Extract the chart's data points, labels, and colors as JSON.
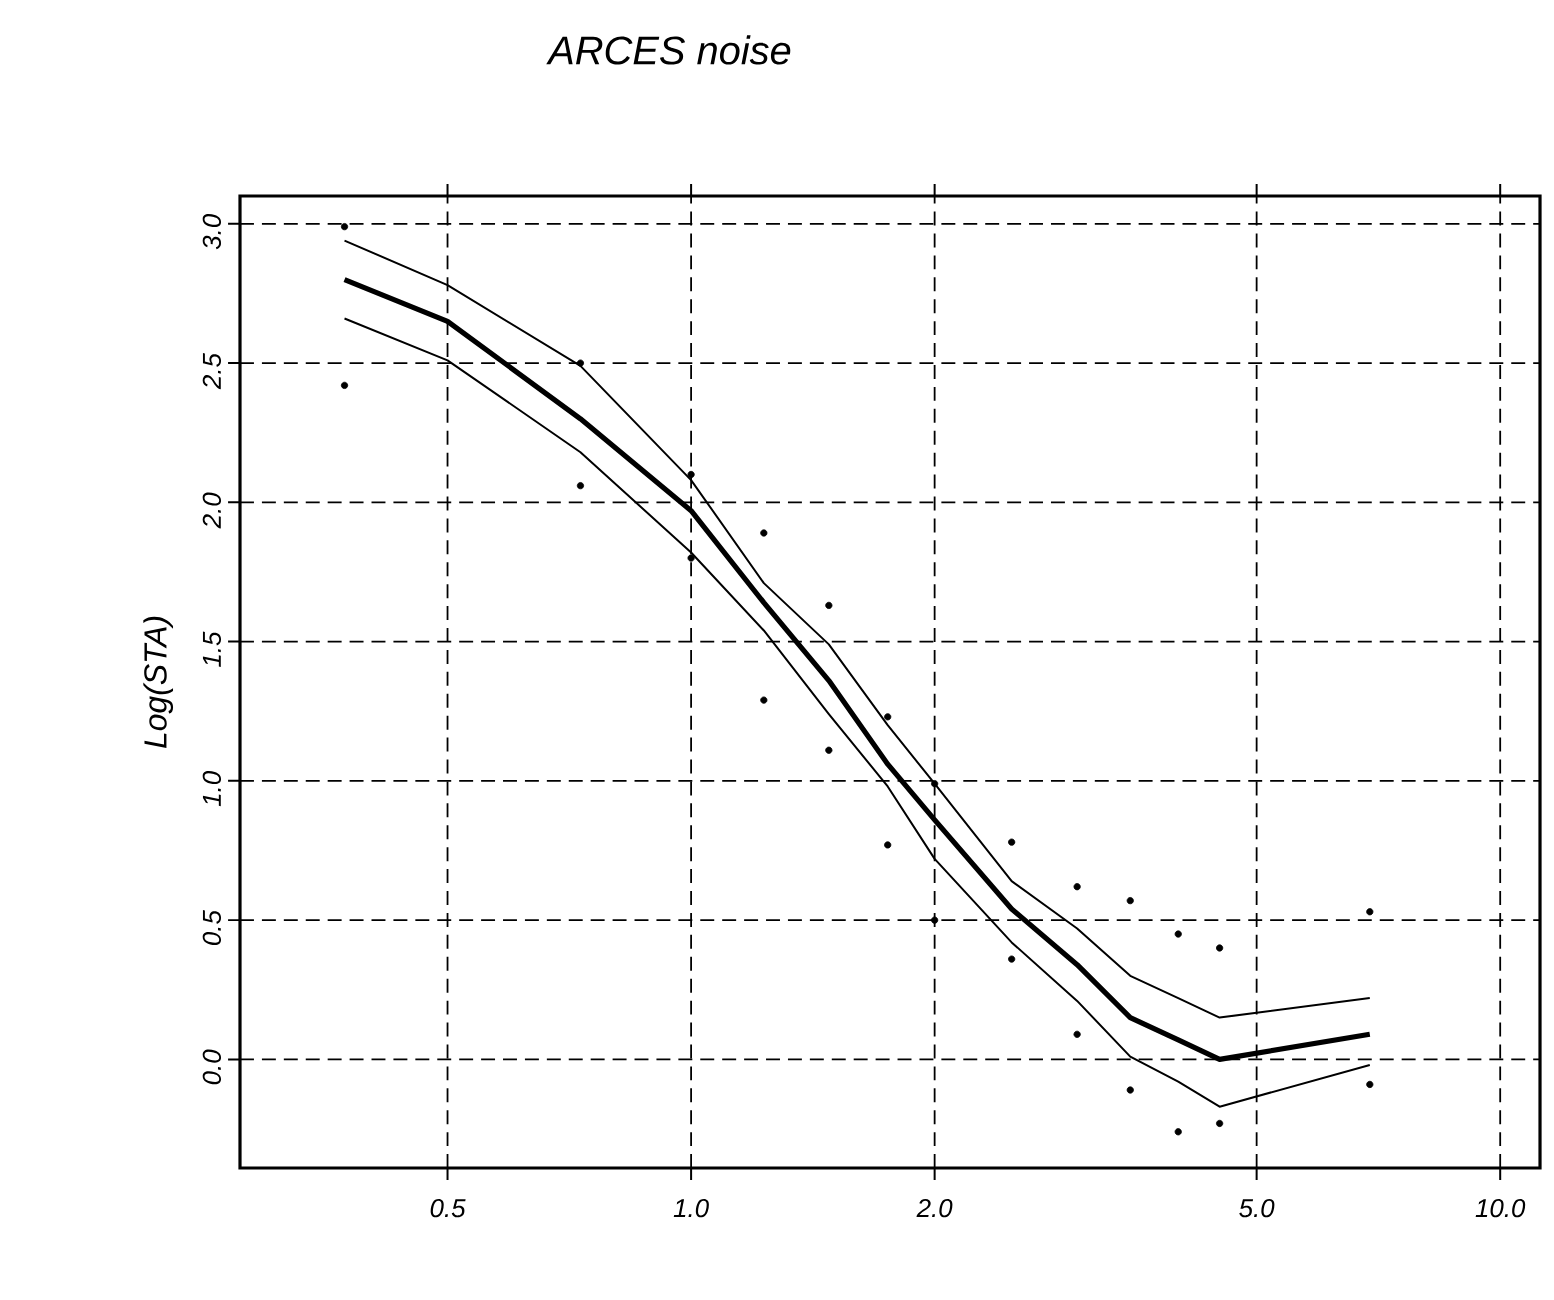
{
  "chart_data": {
    "type": "line",
    "title": "ARCES noise",
    "ylabel": "Log(STA)",
    "log": "x",
    "grid": true,
    "xlim": [
      0.277,
      11.2
    ],
    "ylim": [
      -0.39,
      3.1
    ],
    "xticks": [
      0.5,
      {
        "value": 1,
        "label": "1.0"
      },
      {
        "value": 2,
        "label": "2.0"
      },
      {
        "value": 5,
        "label": "5.0"
      },
      {
        "value": 10,
        "label": "10.0"
      }
    ],
    "yticks": [
      {
        "value": 0,
        "label": "0.0"
      },
      0.5,
      {
        "value": 1,
        "label": "1.0"
      },
      1.5,
      {
        "value": 2,
        "label": "2.0"
      },
      2.5,
      {
        "value": 3,
        "label": "3.0"
      }
    ],
    "series": [
      {
        "color": "#000000",
        "x": [
          0.373,
          0.5,
          0.73,
          1.0,
          1.23,
          1.48,
          1.75,
          2.0,
          2.49,
          3.0,
          3.49,
          4.0,
          4.5,
          6.9
        ],
        "values": [
          2.94,
          2.78,
          2.49,
          2.08,
          1.71,
          1.49,
          1.2,
          0.99,
          0.64,
          0.47,
          0.3,
          0.22,
          0.15,
          0.22
        ]
      },
      {
        "color": "#000000",
        "x": [
          0.373,
          0.5,
          0.73,
          1.0,
          1.23,
          1.48,
          1.75,
          2.0,
          2.49,
          3.0,
          3.49,
          4.0,
          4.5,
          6.9
        ],
        "values": [
          2.8,
          2.65,
          2.3,
          1.97,
          1.64,
          1.36,
          1.06,
          0.86,
          0.54,
          0.34,
          0.15,
          0.07,
          0.0,
          0.09
        ]
      },
      {
        "color": "#000000",
        "x": [
          0.373,
          0.5,
          0.73,
          1.0,
          1.23,
          1.48,
          1.75,
          2.0,
          2.49,
          3.0,
          3.49,
          4.0,
          4.5,
          6.9
        ],
        "values": [
          2.66,
          2.51,
          2.18,
          1.82,
          1.54,
          1.24,
          0.98,
          0.72,
          0.42,
          0.21,
          0.01,
          -0.08,
          -0.17,
          -0.02
        ]
      },
      {
        "type": "scatter",
        "marker": "circle",
        "color": "#000000",
        "x": [
          0.373,
          0.373,
          0.73,
          0.73,
          1.0,
          1.0,
          1.23,
          1.23,
          1.48,
          1.48,
          1.75,
          1.75,
          2.0,
          2.0,
          2.49,
          2.49,
          3.0,
          3.0,
          3.49,
          3.49,
          4.0,
          4.0,
          4.5,
          4.5,
          6.9,
          6.9
        ],
        "values": [
          2.99,
          2.42,
          2.5,
          2.06,
          2.1,
          1.8,
          1.89,
          1.29,
          1.63,
          1.11,
          1.23,
          0.77,
          0.99,
          0.5,
          0.78,
          0.36,
          0.62,
          0.09,
          0.57,
          -0.11,
          0.45,
          -0.26,
          0.4,
          -0.23,
          0.53,
          -0.09
        ]
      }
    ]
  }
}
